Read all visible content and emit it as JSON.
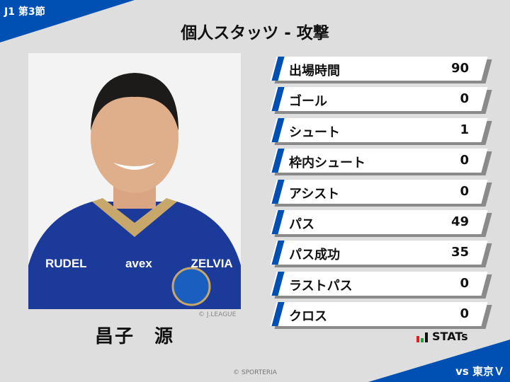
{
  "header": {
    "round": "J1 第3節",
    "title": "個人スタッツ - 攻撃",
    "opponent": "vs 東京Ｖ"
  },
  "player": {
    "name": "昌子　源",
    "photo_credit": "© J.LEAGUE",
    "kit_text": "RUDEL avex ZELVIA"
  },
  "stats": [
    {
      "label": "出場時間",
      "value": "90"
    },
    {
      "label": "ゴール",
      "value": "0"
    },
    {
      "label": "シュート",
      "value": "1"
    },
    {
      "label": "枠内シュート",
      "value": "0"
    },
    {
      "label": "アシスト",
      "value": "0"
    },
    {
      "label": "パス",
      "value": "49"
    },
    {
      "label": "パス成功",
      "value": "35"
    },
    {
      "label": "ラストパス",
      "value": "0"
    },
    {
      "label": "クロス",
      "value": "0"
    }
  ],
  "brand": {
    "logo_text": "STATs",
    "copyright": "© SPORTERIA"
  },
  "colors": {
    "accent": "#0050b4",
    "background": "#dedede"
  }
}
